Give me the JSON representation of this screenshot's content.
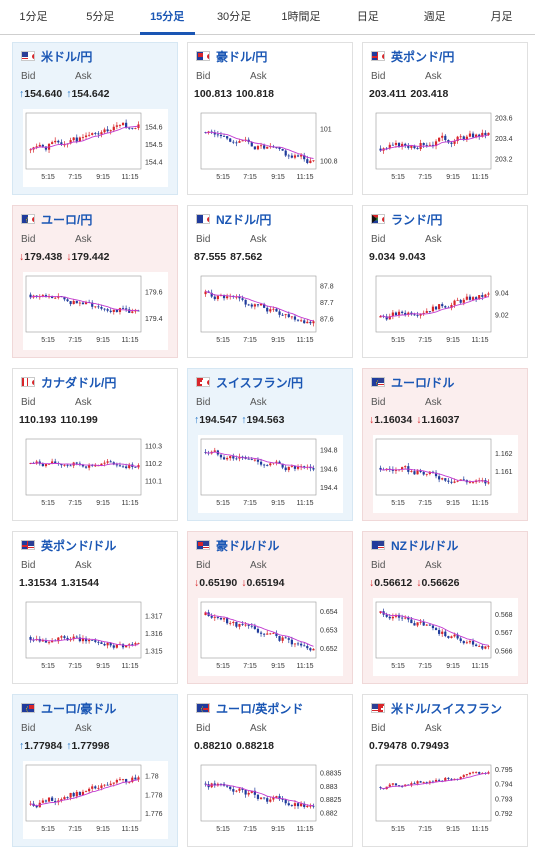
{
  "tabs": [
    {
      "label": "1分足",
      "active": false
    },
    {
      "label": "5分足",
      "active": false
    },
    {
      "label": "15分足",
      "active": true
    },
    {
      "label": "30分足",
      "active": false
    },
    {
      "label": "1時間足",
      "active": false
    },
    {
      "label": "日足",
      "active": false
    },
    {
      "label": "週足",
      "active": false
    },
    {
      "label": "月足",
      "active": false
    }
  ],
  "labels": {
    "bid": "Bid",
    "ask": "Ask"
  },
  "x_ticks": [
    "5:15",
    "7:15",
    "9:15",
    "11:15"
  ],
  "pairs": [
    {
      "name": "米ドル/円",
      "flag": "us-jp",
      "trend": "up",
      "bid": "154.640",
      "ask": "154.642",
      "arrow": "↑",
      "yticks": [
        "154.6",
        "154.5",
        "154.4"
      ],
      "ylim": [
        154.36,
        154.68
      ],
      "tick_values": [
        154.6,
        154.5,
        154.4
      ],
      "seed": 1,
      "start": 154.47,
      "end": 154.62,
      "lo": 154.38,
      "hi": 154.66
    },
    {
      "name": "豪ドル/円",
      "flag": "au-jp",
      "trend": "none",
      "bid": "100.813",
      "ask": "100.818",
      "arrow": "",
      "yticks": [
        "101",
        "100.8"
      ],
      "ylim": [
        100.75,
        101.1
      ],
      "tick_values": [
        101,
        100.8
      ],
      "seed": 2,
      "start": 100.98,
      "end": 100.79,
      "lo": 100.76,
      "hi": 101.06
    },
    {
      "name": "英ポンド/円",
      "flag": "gb-jp",
      "trend": "none",
      "bid": "203.411",
      "ask": "203.418",
      "arrow": "",
      "yticks": [
        "203.6",
        "203.4",
        "203.2"
      ],
      "ylim": [
        203.1,
        203.65
      ],
      "tick_values": [
        203.6,
        203.4,
        203.2
      ],
      "seed": 3,
      "start": 203.3,
      "end": 203.45,
      "lo": 203.15,
      "hi": 203.62
    },
    {
      "name": "ユーロ/円",
      "flag": "eu-jp",
      "trend": "down",
      "bid": "179.438",
      "ask": "179.442",
      "arrow": "↓",
      "yticks": [
        "179.6",
        "179.4"
      ],
      "ylim": [
        179.3,
        179.72
      ],
      "tick_values": [
        179.6,
        179.4
      ],
      "seed": 4,
      "start": 179.58,
      "end": 179.44,
      "lo": 179.35,
      "hi": 179.66
    },
    {
      "name": "NZドル/円",
      "flag": "nz-jp",
      "trend": "none",
      "bid": "87.555",
      "ask": "87.562",
      "arrow": "",
      "yticks": [
        "87.8",
        "87.7",
        "87.6"
      ],
      "ylim": [
        87.52,
        87.86
      ],
      "tick_values": [
        87.8,
        87.7,
        87.6
      ],
      "seed": 5,
      "start": 87.75,
      "end": 87.58,
      "lo": 87.54,
      "hi": 87.82
    },
    {
      "name": "ランド/円",
      "flag": "za-jp",
      "trend": "none",
      "bid": "9.034",
      "ask": "9.043",
      "arrow": "",
      "yticks": [
        "9.04",
        "9.02"
      ],
      "ylim": [
        9.005,
        9.055
      ],
      "tick_values": [
        9.04,
        9.02
      ],
      "seed": 6,
      "start": 9.018,
      "end": 9.038,
      "lo": 9.01,
      "hi": 9.05
    },
    {
      "name": "カナダドル/円",
      "flag": "ca-jp",
      "trend": "none",
      "bid": "110.193",
      "ask": "110.199",
      "arrow": "",
      "yticks": [
        "110.3",
        "110.2",
        "110.1"
      ],
      "ylim": [
        110.02,
        110.34
      ],
      "tick_values": [
        110.3,
        110.2,
        110.1
      ],
      "seed": 7,
      "start": 110.2,
      "end": 110.19,
      "lo": 110.08,
      "hi": 110.3
    },
    {
      "name": "スイスフラン/円",
      "flag": "ch-jp",
      "trend": "up",
      "bid": "194.547",
      "ask": "194.563",
      "arrow": "↑",
      "yticks": [
        "194.8",
        "194.6",
        "194.4"
      ],
      "ylim": [
        194.32,
        194.92
      ],
      "tick_values": [
        194.8,
        194.6,
        194.4
      ],
      "seed": 8,
      "start": 194.78,
      "end": 194.55,
      "lo": 194.38,
      "hi": 194.86
    },
    {
      "name": "ユーロ/ドル",
      "flag": "eu-us",
      "trend": "down",
      "bid": "1.16034",
      "ask": "1.16037",
      "arrow": "↓",
      "yticks": [
        "1.162",
        "1.161"
      ],
      "ylim": [
        1.1597,
        1.1628
      ],
      "tick_values": [
        1.162,
        1.161
      ],
      "seed": 9,
      "start": 1.1612,
      "end": 1.1603,
      "lo": 1.16,
      "hi": 1.1625
    },
    {
      "name": "英ポンド/ドル",
      "flag": "gb-us",
      "trend": "none",
      "bid": "1.31534",
      "ask": "1.31544",
      "arrow": "",
      "yticks": [
        "1.317",
        "1.316",
        "1.315"
      ],
      "ylim": [
        1.3146,
        1.3178
      ],
      "tick_values": [
        1.317,
        1.316,
        1.315
      ],
      "seed": 10,
      "start": 1.3158,
      "end": 1.3153,
      "lo": 1.3149,
      "hi": 1.3175
    },
    {
      "name": "豪ドル/ドル",
      "flag": "au-us",
      "trend": "down",
      "bid": "0.65190",
      "ask": "0.65194",
      "arrow": "↓",
      "yticks": [
        "0.654",
        "0.653",
        "0.652"
      ],
      "ylim": [
        0.6515,
        0.6545
      ],
      "tick_values": [
        0.654,
        0.653,
        0.652
      ],
      "seed": 11,
      "start": 0.6538,
      "end": 0.6519,
      "lo": 0.6517,
      "hi": 0.6542
    },
    {
      "name": "NZドル/ドル",
      "flag": "nz-us",
      "trend": "down",
      "bid": "0.56612",
      "ask": "0.56626",
      "arrow": "↓",
      "yticks": [
        "0.568",
        "0.567",
        "0.566"
      ],
      "ylim": [
        0.5656,
        0.5687
      ],
      "tick_values": [
        0.568,
        0.567,
        0.566
      ],
      "seed": 12,
      "start": 0.5681,
      "end": 0.5661,
      "lo": 0.5659,
      "hi": 0.5684
    },
    {
      "name": "ユーロ/豪ドル",
      "flag": "eu-au",
      "trend": "up",
      "bid": "1.77984",
      "ask": "1.77998",
      "arrow": "↑",
      "yticks": [
        "1.78",
        "1.778",
        "1.776"
      ],
      "ylim": [
        1.7752,
        1.7812
      ],
      "tick_values": [
        1.78,
        1.778,
        1.776
      ],
      "seed": 13,
      "start": 1.777,
      "end": 1.7798,
      "lo": 1.7758,
      "hi": 1.7806
    },
    {
      "name": "ユーロ/英ポンド",
      "flag": "eu-gb",
      "trend": "none",
      "bid": "0.88210",
      "ask": "0.88218",
      "arrow": "",
      "yticks": [
        "0.8835",
        "0.883",
        "0.8825",
        "0.882"
      ],
      "ylim": [
        0.8817,
        0.8838
      ],
      "tick_values": [
        0.8835,
        0.883,
        0.8825,
        0.882
      ],
      "seed": 14,
      "start": 0.8831,
      "end": 0.8821,
      "lo": 0.8819,
      "hi": 0.8836
    },
    {
      "name": "米ドル/スイスフラン",
      "flag": "us-ch",
      "trend": "none",
      "bid": "0.79478",
      "ask": "0.79493",
      "arrow": "",
      "yticks": [
        "0.795",
        "0.794",
        "0.793",
        "0.792"
      ],
      "ylim": [
        0.7915,
        0.7953
      ],
      "tick_values": [
        0.795,
        0.794,
        0.793,
        0.792
      ],
      "seed": 15,
      "start": 0.7938,
      "end": 0.7948,
      "lo": 0.7934,
      "hi": 0.7951
    }
  ],
  "colors": {
    "up_candle": "#d8262b",
    "down_candle": "#1f3b9c",
    "ma": "#c23ad1",
    "accent": "#1a56b4",
    "arrow_up": "#1a6fc4",
    "arrow_down": "#d8262b"
  }
}
